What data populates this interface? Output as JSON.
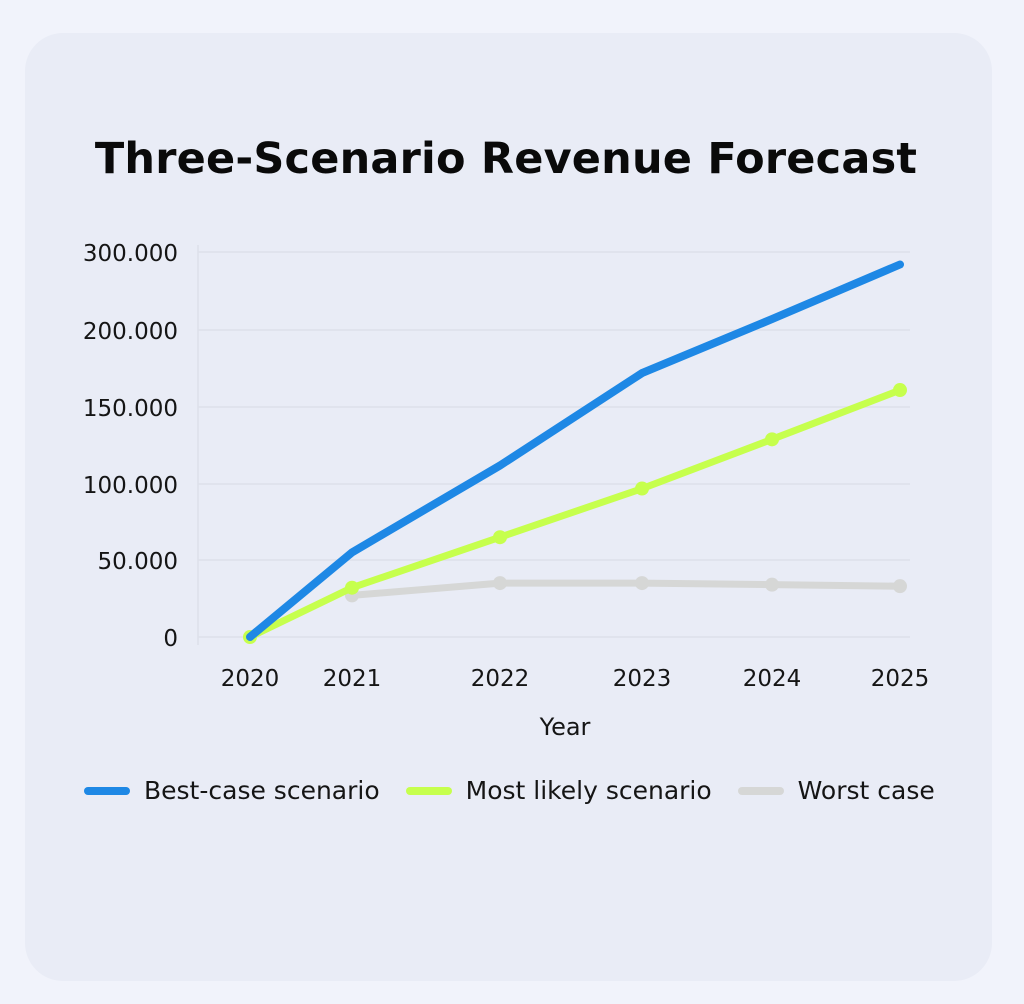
{
  "chart_data": {
    "type": "line",
    "title": "Three-Scenario Revenue Forecast",
    "xlabel": "Year",
    "ylabel": "",
    "x": [
      "2020",
      "2021",
      "2022",
      "2023",
      "2024",
      "2025"
    ],
    "ytick_labels": [
      "0",
      "50.000",
      "100.000",
      "150.000",
      "200.000",
      "300.000"
    ],
    "series": [
      {
        "name": "Best-case scenario",
        "color": "#1e88e5",
        "values": [
          0,
          55000,
          112000,
          172000,
          207000,
          242000
        ],
        "markers": false
      },
      {
        "name": "Most likely scenario",
        "color": "#c6ff4d",
        "values": [
          0,
          32000,
          65000,
          97000,
          129000,
          161000
        ],
        "markers": true
      },
      {
        "name": "Worst case",
        "color": "#d6d7d6",
        "values": [
          null,
          27000,
          35000,
          35000,
          34000,
          33000
        ],
        "markers": true
      }
    ],
    "grid": true,
    "legend_position": "bottom"
  }
}
